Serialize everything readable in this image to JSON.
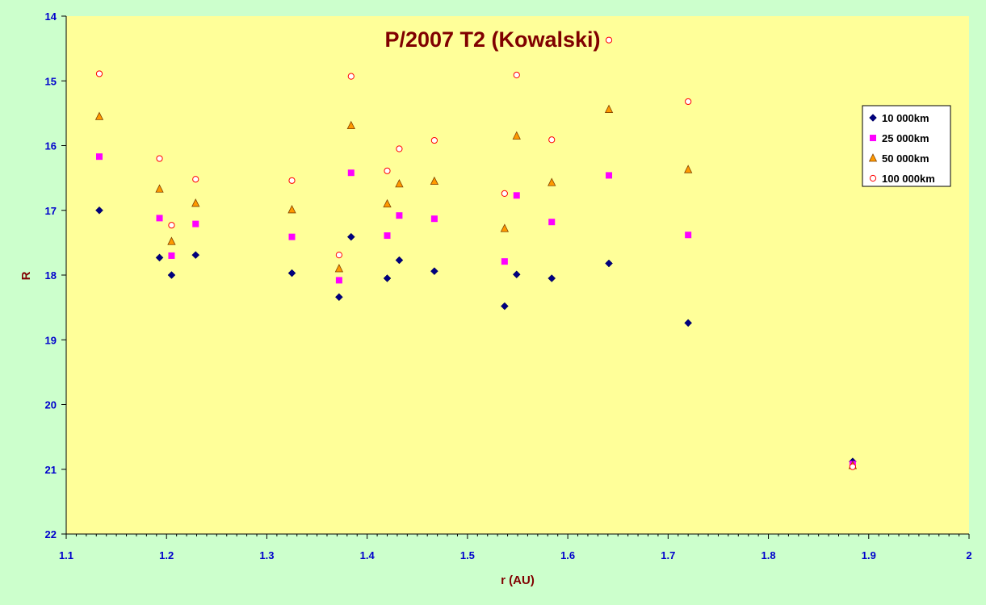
{
  "chart_data": {
    "type": "scatter",
    "title": "P/2007 T2 (Kowalski)",
    "xlabel": "r (AU)",
    "ylabel": "R",
    "xlim": [
      1.1,
      2.0
    ],
    "ylim": [
      14,
      22
    ],
    "y_reversed": true,
    "x_ticks": [
      "1.1",
      "1.2",
      "1.3",
      "1.4",
      "1.5",
      "1.6",
      "1.7",
      "1.8",
      "1.9",
      "2"
    ],
    "y_ticks": [
      "14",
      "15",
      "16",
      "17",
      "18",
      "19",
      "20",
      "21",
      "22"
    ],
    "x_minor_step": 0.01,
    "grid": false,
    "legend_position": "right",
    "colors": {
      "background": "#ccffcc",
      "plot_area": "#ffff99",
      "axis_line": "#000000",
      "tick_label": "#0000cc",
      "title": "#800000"
    },
    "series": [
      {
        "name": "10 000km",
        "marker": "diamond",
        "color": "#000080",
        "x": [
          1.133,
          1.193,
          1.205,
          1.229,
          1.325,
          1.372,
          1.384,
          1.42,
          1.432,
          1.467,
          1.537,
          1.549,
          1.584,
          1.641,
          1.72,
          1.884
        ],
        "y": [
          17.0,
          17.73,
          18.0,
          17.69,
          17.97,
          18.34,
          17.41,
          18.05,
          17.77,
          17.94,
          18.48,
          17.99,
          18.05,
          17.82,
          18.74,
          20.88
        ]
      },
      {
        "name": "25 000km",
        "marker": "square",
        "color": "#ff00ff",
        "x": [
          1.133,
          1.193,
          1.205,
          1.229,
          1.325,
          1.372,
          1.384,
          1.42,
          1.432,
          1.467,
          1.537,
          1.549,
          1.584,
          1.641,
          1.72,
          1.884
        ],
        "y": [
          16.17,
          17.12,
          17.7,
          17.21,
          17.41,
          18.08,
          16.42,
          17.39,
          17.08,
          17.13,
          17.79,
          16.77,
          17.18,
          16.46,
          17.38,
          20.92
        ]
      },
      {
        "name": "50 000km",
        "marker": "triangle",
        "color": "#ff9900",
        "x": [
          1.133,
          1.193,
          1.205,
          1.229,
          1.325,
          1.372,
          1.384,
          1.42,
          1.432,
          1.467,
          1.537,
          1.549,
          1.584,
          1.641,
          1.72,
          1.884
        ],
        "y": [
          15.55,
          16.67,
          17.48,
          16.89,
          16.99,
          17.9,
          15.69,
          16.9,
          16.59,
          16.55,
          17.28,
          15.85,
          16.57,
          15.44,
          16.37,
          20.94
        ]
      },
      {
        "name": "100 000km",
        "marker": "circle",
        "color": "#ff0000",
        "x": [
          1.133,
          1.193,
          1.205,
          1.229,
          1.325,
          1.372,
          1.384,
          1.42,
          1.432,
          1.467,
          1.537,
          1.549,
          1.584,
          1.641,
          1.72,
          1.884
        ],
        "y": [
          14.89,
          16.2,
          17.23,
          16.52,
          16.54,
          17.69,
          14.93,
          16.39,
          16.05,
          15.92,
          16.74,
          14.91,
          15.91,
          14.37,
          15.32,
          20.96
        ]
      }
    ]
  }
}
